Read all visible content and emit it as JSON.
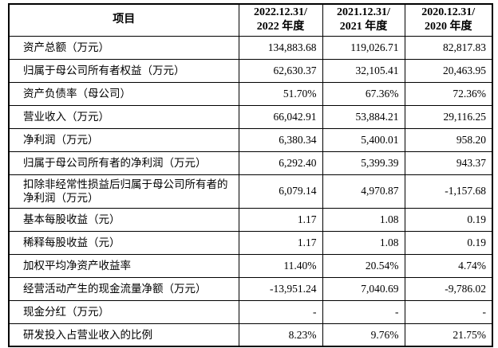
{
  "page": {
    "background": "#ffffff",
    "text_color": "#000000",
    "border_color": "#000000"
  },
  "table": {
    "columns": [
      {
        "key": "item",
        "header_line1": "项目",
        "header_line2": ""
      },
      {
        "key": "y2022",
        "header_line1": "2022.12.31/",
        "header_line2": "2022 年度"
      },
      {
        "key": "y2021",
        "header_line1": "2021.12.31/",
        "header_line2": "2021 年度"
      },
      {
        "key": "y2020",
        "header_line1": "2020.12.31/",
        "header_line2": "2020 年度"
      }
    ],
    "rows": [
      {
        "label": "资产总额（万元）",
        "v2022": "134,883.68",
        "v2021": "119,026.71",
        "v2020": "82,817.83"
      },
      {
        "label": "归属于母公司所有者权益（万元）",
        "v2022": "62,630.37",
        "v2021": "32,105.41",
        "v2020": "20,463.95"
      },
      {
        "label": "资产负债率（母公司）",
        "v2022": "51.70%",
        "v2021": "67.36%",
        "v2020": "72.36%"
      },
      {
        "label": "营业收入（万元）",
        "v2022": "66,042.91",
        "v2021": "53,884.21",
        "v2020": "29,116.25"
      },
      {
        "label": "净利润（万元）",
        "v2022": "6,380.34",
        "v2021": "5,400.01",
        "v2020": "958.20"
      },
      {
        "label": "归属于母公司所有者的净利润（万元）",
        "v2022": "6,292.40",
        "v2021": "5,399.39",
        "v2020": "943.37"
      },
      {
        "label": "扣除非经常性损益后归属于母公司所有者的净利润（万元）",
        "v2022": "6,079.14",
        "v2021": "4,970.87",
        "v2020": "-1,157.68"
      },
      {
        "label": "基本每股收益（元）",
        "v2022": "1.17",
        "v2021": "1.08",
        "v2020": "0.19"
      },
      {
        "label": "稀释每股收益（元）",
        "v2022": "1.17",
        "v2021": "1.08",
        "v2020": "0.19"
      },
      {
        "label": "加权平均净资产收益率",
        "v2022": "11.40%",
        "v2021": "20.54%",
        "v2020": "4.74%"
      },
      {
        "label": "经营活动产生的现金流量净额（万元）",
        "v2022": "-13,951.24",
        "v2021": "7,040.69",
        "v2020": "-9,786.02"
      },
      {
        "label": "现金分红（万元）",
        "v2022": "-",
        "v2021": "-",
        "v2020": "-"
      },
      {
        "label": "研发投入占营业收入的比例",
        "v2022": "8.23%",
        "v2021": "9.76%",
        "v2020": "21.75%"
      }
    ]
  }
}
